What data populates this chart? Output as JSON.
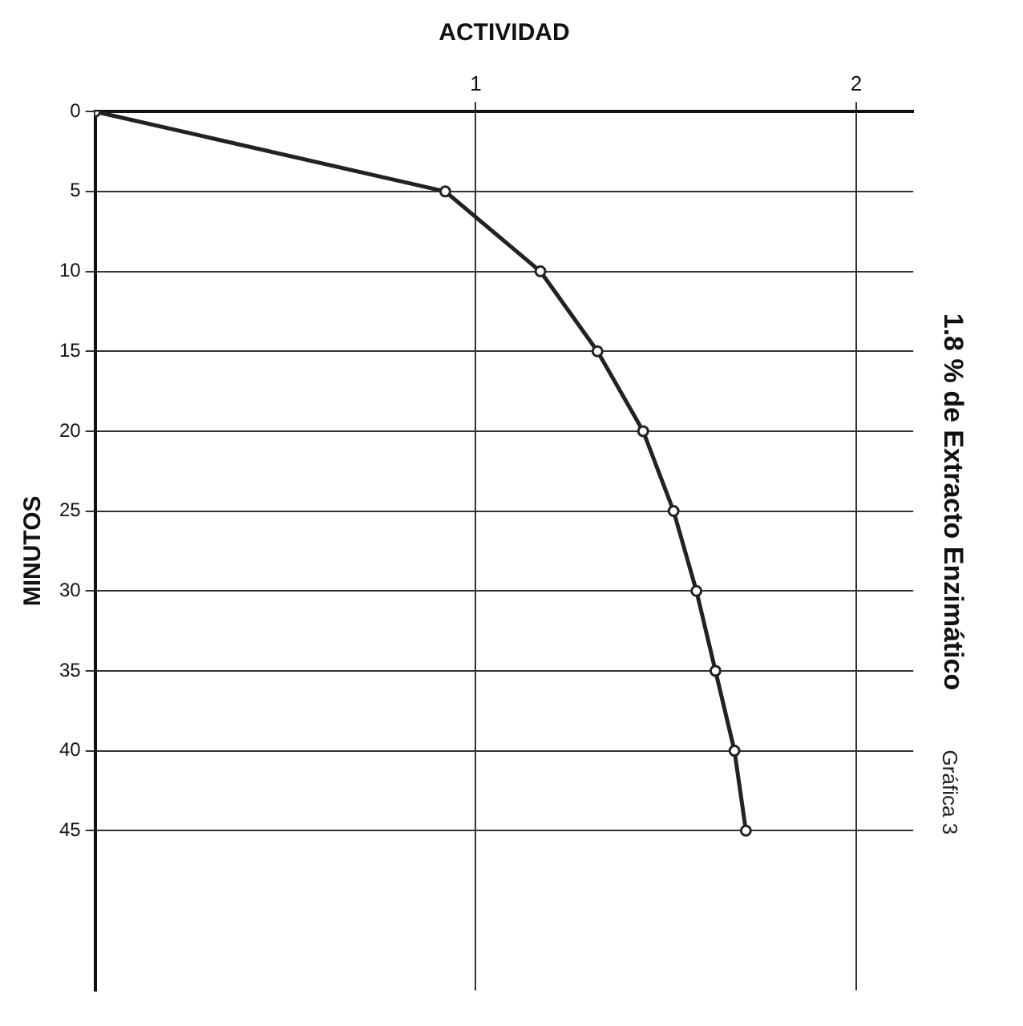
{
  "chart_data": {
    "type": "line",
    "title": "1.8 % de Extracto Enzimático",
    "xlabel": "ACTIVIDAD",
    "ylabel": "MINUTOS",
    "annotations": [
      "Gráfica 3"
    ],
    "x": [
      0,
      0.92,
      1.17,
      1.32,
      1.44,
      1.52,
      1.58,
      1.63,
      1.68,
      1.71
    ],
    "series": [
      {
        "color": "#222222",
        "values": [
          0,
          5,
          10,
          15,
          20,
          25,
          30,
          35,
          40,
          45
        ]
      }
    ],
    "xlim": [
      0,
      2.15
    ],
    "xticks": [
      1,
      2
    ],
    "ylim": [
      55,
      0
    ],
    "yticks": [
      0,
      5,
      10,
      15,
      20,
      25,
      30,
      35,
      40,
      45
    ],
    "grid": true,
    "legend": false,
    "marker": "circle",
    "line_style": "solid"
  }
}
